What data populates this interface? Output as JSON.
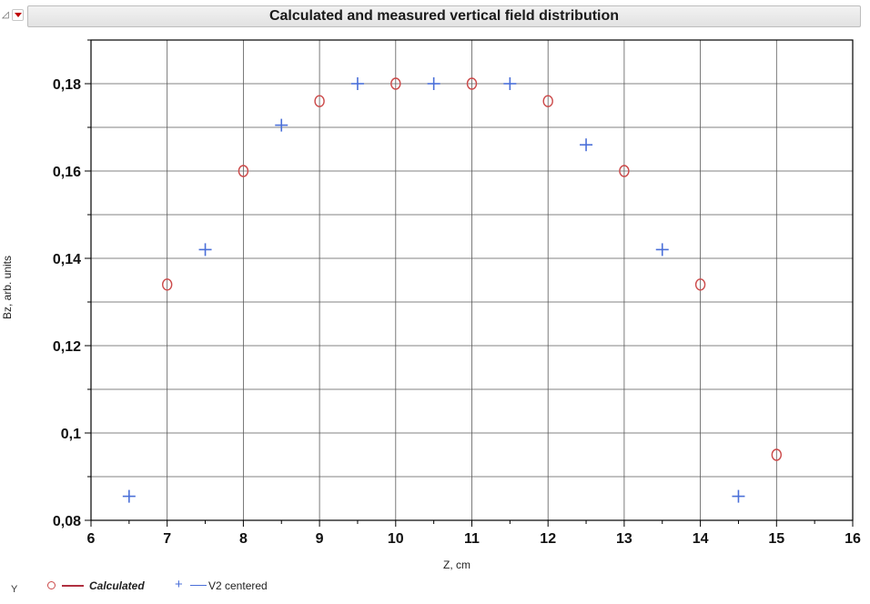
{
  "title": "Calculated and measured  vertical field distribution",
  "legend": {
    "y_label": "Y",
    "calculated_label": "Calculated",
    "v2_label": "V2 centered"
  },
  "colors": {
    "calculated_marker": "#cc4a4a",
    "calculated_line": "#b03040",
    "v2_marker": "#4a6fd8",
    "grid": "#5a5a5a",
    "frame": "#000000"
  },
  "icons": {
    "collapse": "triangle-down-right-icon",
    "menu": "red-dropdown-icon"
  },
  "chart_data": {
    "type": "scatter",
    "title": "Calculated and measured  vertical field distribution",
    "xlabel": "Z, cm",
    "ylabel": "Bz, arb. units",
    "xlim": [
      6,
      16
    ],
    "ylim": [
      0.08,
      0.19
    ],
    "x_ticks": [
      6,
      7,
      8,
      9,
      10,
      11,
      12,
      13,
      14,
      15,
      16
    ],
    "x_tick_labels": [
      "6",
      "7",
      "8",
      "9",
      "10",
      "11",
      "12",
      "13",
      "14",
      "15",
      "16"
    ],
    "y_ticks": [
      0.08,
      0.1,
      0.12,
      0.14,
      0.16,
      0.18
    ],
    "y_tick_labels": [
      "0,08",
      "0,1",
      "0,12",
      "0,14",
      "0,16",
      "0,18"
    ],
    "grid": true,
    "legend_position": "bottom-left",
    "series": [
      {
        "name": "Calculated",
        "marker": "circle",
        "x": [
          7,
          8,
          9,
          10,
          11,
          12,
          13,
          14,
          15
        ],
        "y": [
          0.134,
          0.16,
          0.176,
          0.18,
          0.18,
          0.176,
          0.16,
          0.134,
          0.095
        ]
      },
      {
        "name": "V2 centered",
        "marker": "plus",
        "x": [
          6.5,
          7.5,
          8.5,
          9.5,
          10.5,
          11.5,
          12.5,
          13.5,
          14.5
        ],
        "y": [
          0.0855,
          0.142,
          0.1705,
          0.18,
          0.18,
          0.18,
          0.166,
          0.142,
          0.0855
        ]
      }
    ]
  }
}
